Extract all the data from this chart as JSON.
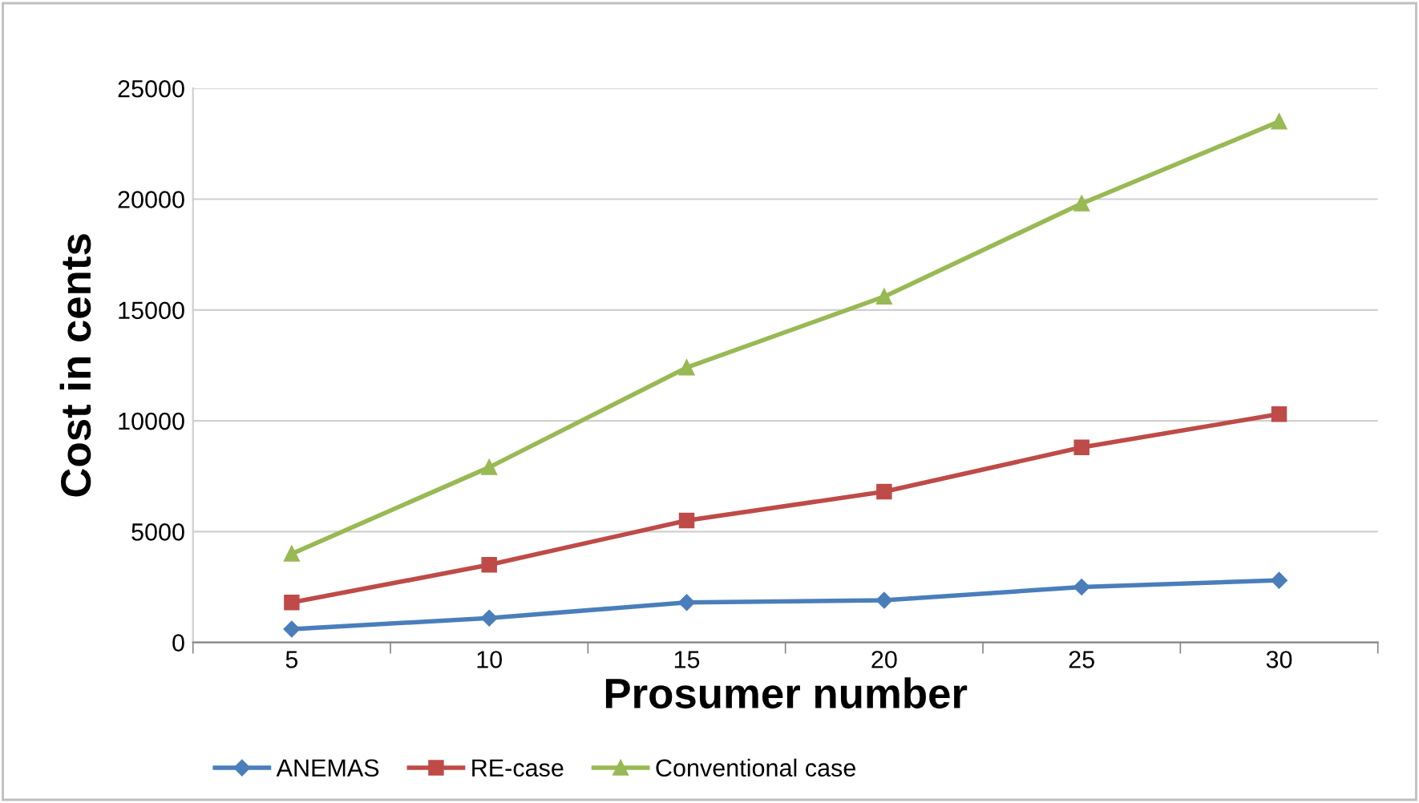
{
  "chart_data": {
    "type": "line",
    "xlabel": "Prosumer number",
    "ylabel": "Cost in cents",
    "categories": [
      "5",
      "10",
      "15",
      "20",
      "25",
      "30"
    ],
    "series": [
      {
        "name": "ANEMAS",
        "color": "#4a7ebb",
        "marker": "diamond",
        "values": [
          600,
          1100,
          1800,
          1900,
          2500,
          2800
        ]
      },
      {
        "name": "RE-case",
        "color": "#be4b48",
        "marker": "square",
        "values": [
          1800,
          3500,
          5500,
          6800,
          8800,
          10300
        ]
      },
      {
        "name": "Conventional case",
        "color": "#98b954",
        "marker": "triangle",
        "values": [
          4000,
          7900,
          12400,
          15600,
          19800,
          23500
        ]
      }
    ],
    "ylim": [
      0,
      25000
    ],
    "yticks": [
      0,
      5000,
      10000,
      15000,
      20000,
      25000
    ],
    "grid": "y",
    "legend": "bottom",
    "line_style": "solid"
  }
}
